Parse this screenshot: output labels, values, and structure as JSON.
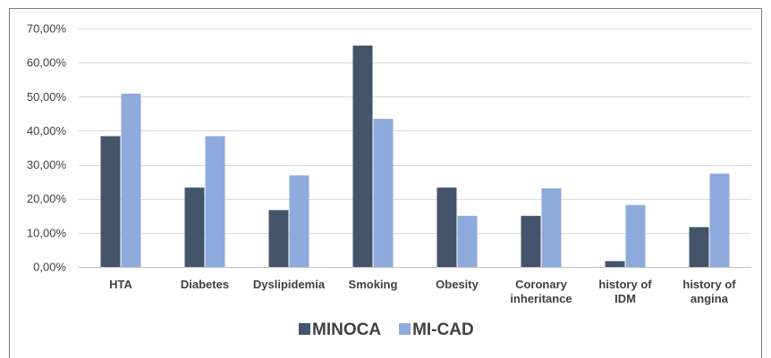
{
  "chart_data": {
    "type": "bar",
    "categories": [
      "HTA",
      "Diabetes",
      "Dyslipidemia",
      "Smoking",
      "Obesity",
      [
        "Coronary",
        "inheritance"
      ],
      [
        "history of",
        "IDM"
      ],
      [
        "history of",
        "angina"
      ]
    ],
    "series": [
      {
        "name": "MINOCA",
        "color": "#44546a",
        "values": [
          38.4,
          23.3,
          16.7,
          65.0,
          23.3,
          15.0,
          1.7,
          11.7
        ]
      },
      {
        "name": "MI-CAD",
        "color": "#8faadc",
        "values": [
          50.9,
          38.4,
          26.9,
          43.5,
          15.0,
          23.1,
          18.2,
          27.4
        ]
      }
    ],
    "y_ticks": [
      "0,00%",
      "10,00%",
      "20,00%",
      "30,00%",
      "40,00%",
      "50,00%",
      "60,00%",
      "70,00%"
    ],
    "ylim": [
      0,
      70
    ],
    "grid": true,
    "legend_position": "bottom",
    "title": "",
    "xlabel": "",
    "ylabel": ""
  }
}
